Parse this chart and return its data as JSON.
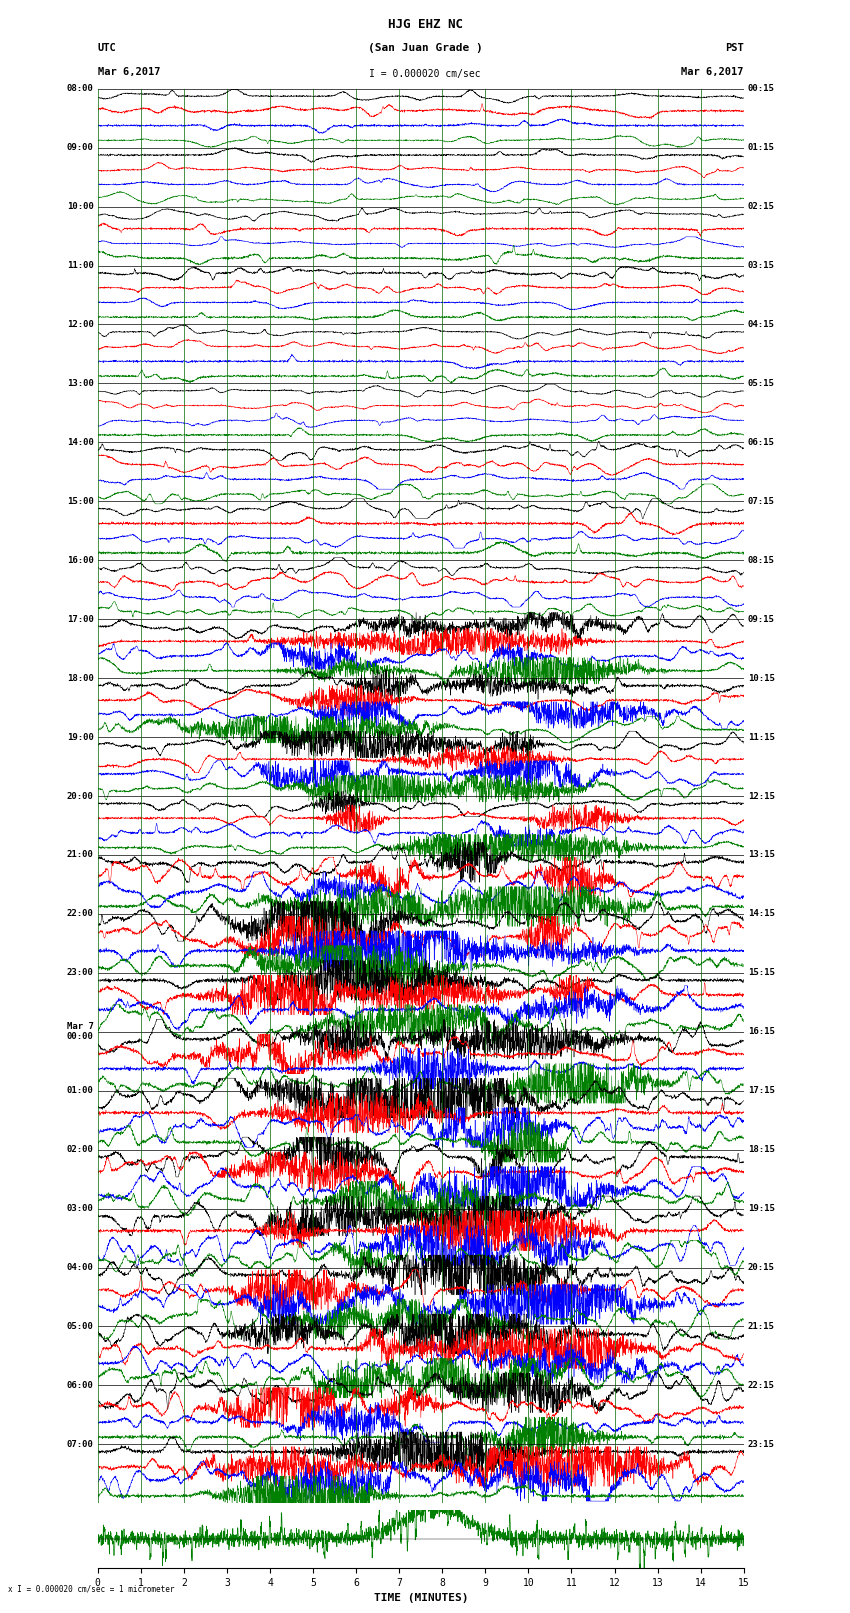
{
  "title_line1": "HJG EHZ NC",
  "title_line2": "(San Juan Grade )",
  "scale_label": "I = 0.000020 cm/sec",
  "left_timezone": "UTC",
  "right_timezone": "PST",
  "left_date": "Mar 6,2017",
  "right_date": "Mar 6,2017",
  "utc_times": [
    "08:00",
    "09:00",
    "10:00",
    "11:00",
    "12:00",
    "13:00",
    "14:00",
    "15:00",
    "16:00",
    "17:00",
    "18:00",
    "19:00",
    "20:00",
    "21:00",
    "22:00",
    "23:00",
    "Mar 7\n00:00",
    "01:00",
    "02:00",
    "03:00",
    "04:00",
    "05:00",
    "06:00",
    "07:00"
  ],
  "pst_times": [
    "00:15",
    "01:15",
    "02:15",
    "03:15",
    "04:15",
    "05:15",
    "06:15",
    "07:15",
    "08:15",
    "09:15",
    "10:15",
    "11:15",
    "12:15",
    "13:15",
    "14:15",
    "15:15",
    "16:15",
    "17:15",
    "18:15",
    "19:15",
    "20:15",
    "21:15",
    "22:15",
    "23:15"
  ],
  "xlabel": "TIME (MINUTES)",
  "xticks": [
    0,
    1,
    2,
    3,
    4,
    5,
    6,
    7,
    8,
    9,
    10,
    11,
    12,
    13,
    14,
    15
  ],
  "background_color": "#ffffff",
  "trace_colors": [
    "#000000",
    "#ff0000",
    "#0000ff",
    "#008000"
  ],
  "num_rows": 24,
  "sub_rows": 4,
  "fig_width": 8.5,
  "fig_height": 16.13,
  "dpi": 100
}
